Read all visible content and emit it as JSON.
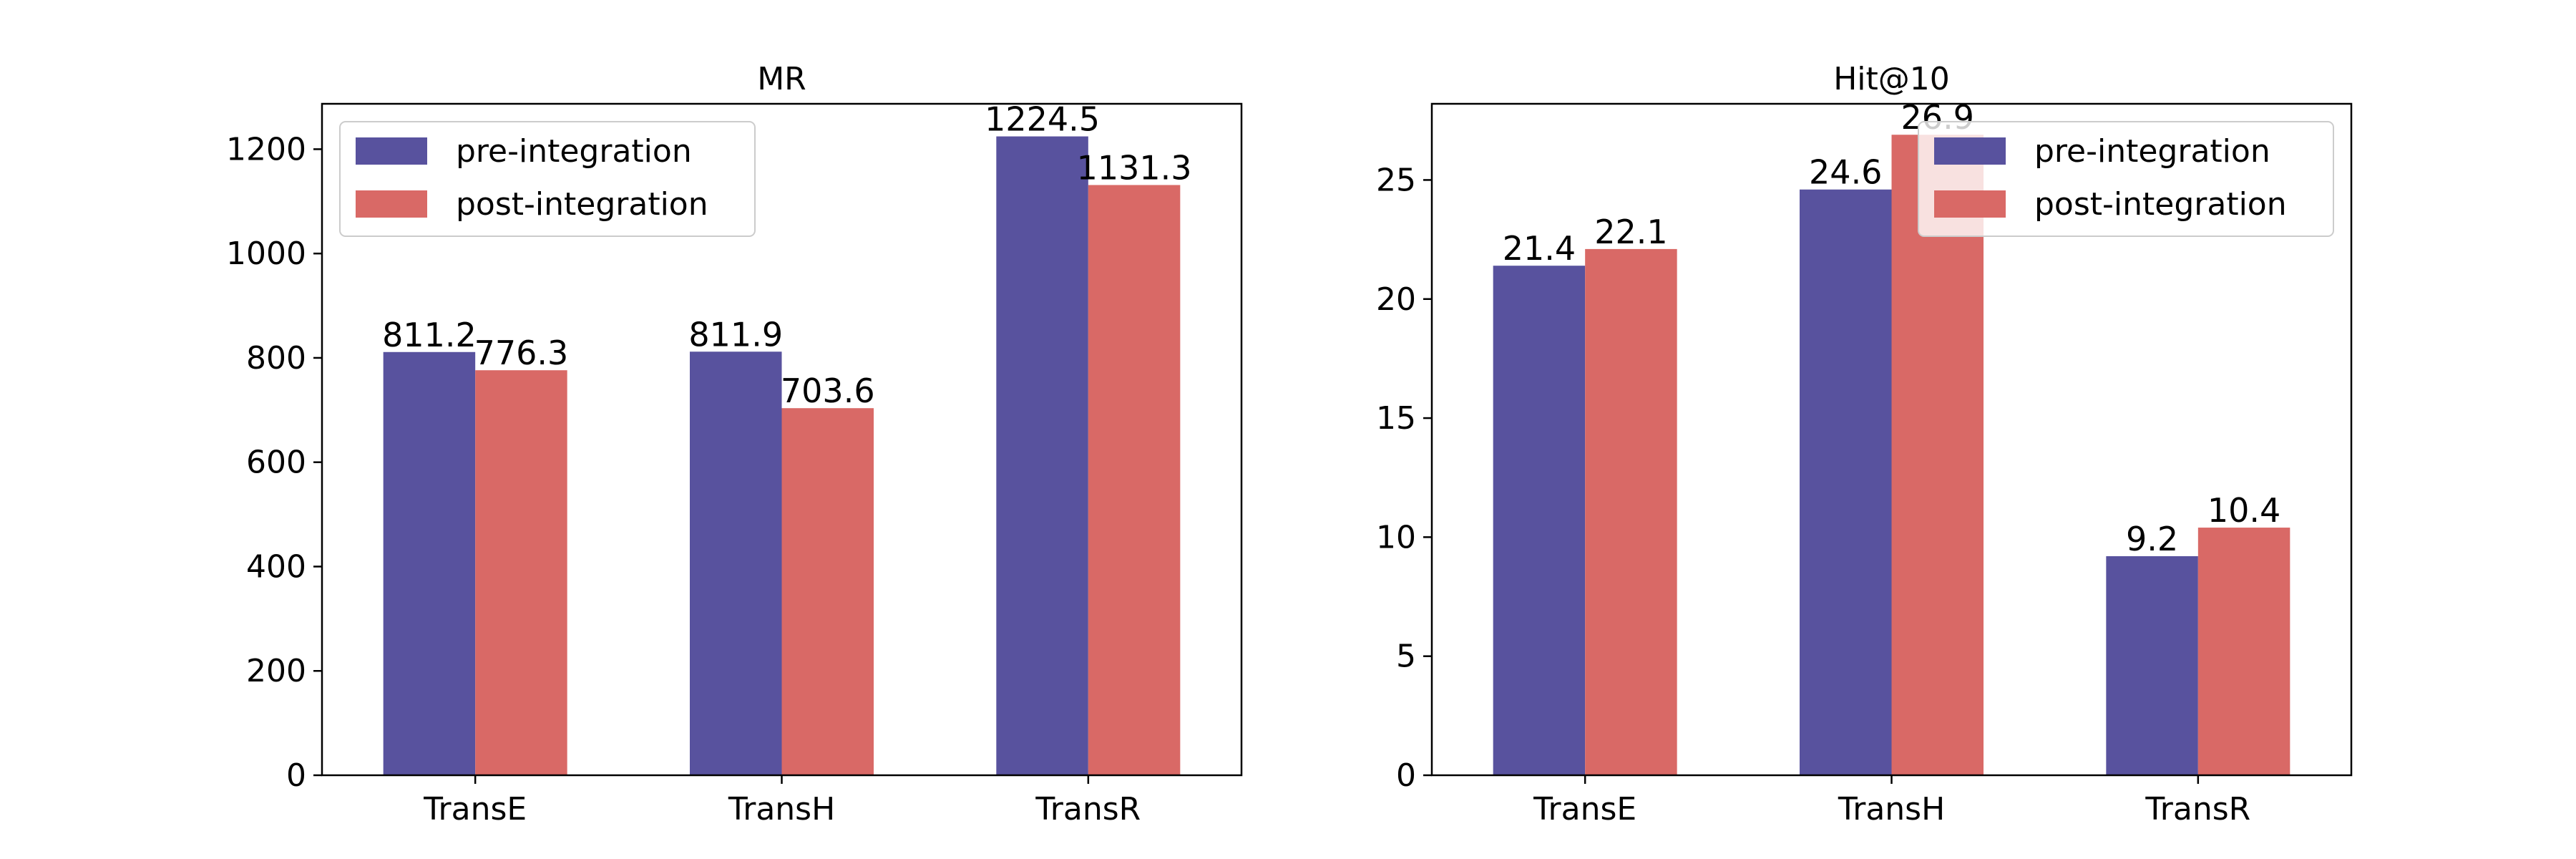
{
  "chart_data": [
    {
      "type": "bar",
      "title": "MR",
      "xlabel": "",
      "ylabel": "",
      "categories": [
        "TransE",
        "TransH",
        "TransR"
      ],
      "series": [
        {
          "name": "pre-integration",
          "values": [
            811.2,
            811.9,
            1224.5
          ],
          "labels": [
            "811.2",
            "811.9",
            "1224.5"
          ],
          "color": "#58529e"
        },
        {
          "name": "post-integration",
          "values": [
            776.3,
            703.6,
            1131.3
          ],
          "labels": [
            "776.3",
            "703.6",
            "1131.3"
          ],
          "color": "#d96966"
        }
      ],
      "ylim": [
        0,
        1287
      ],
      "yticks": [
        0,
        200,
        400,
        600,
        800,
        1000,
        1200
      ],
      "ytick_labels": [
        "0",
        "200",
        "400",
        "600",
        "800",
        "1000",
        "1200"
      ],
      "legend": "upper-left",
      "grid": false
    },
    {
      "type": "bar",
      "title": "Hit@10",
      "xlabel": "",
      "ylabel": "",
      "categories": [
        "TransE",
        "TransH",
        "TransR"
      ],
      "series": [
        {
          "name": "pre-integration",
          "values": [
            21.4,
            24.6,
            9.2
          ],
          "labels": [
            "21.4",
            "24.6",
            "9.2"
          ],
          "color": "#58529e"
        },
        {
          "name": "post-integration",
          "values": [
            22.1,
            26.9,
            10.4
          ],
          "labels": [
            "22.1",
            "26.9",
            "10.4"
          ],
          "color": "#d96966"
        }
      ],
      "ylim": [
        0,
        28.2
      ],
      "yticks": [
        0,
        5,
        10,
        15,
        20,
        25
      ],
      "ytick_labels": [
        "0",
        "5",
        "10",
        "15",
        "20",
        "25"
      ],
      "legend": "upper-right",
      "grid": false
    }
  ]
}
